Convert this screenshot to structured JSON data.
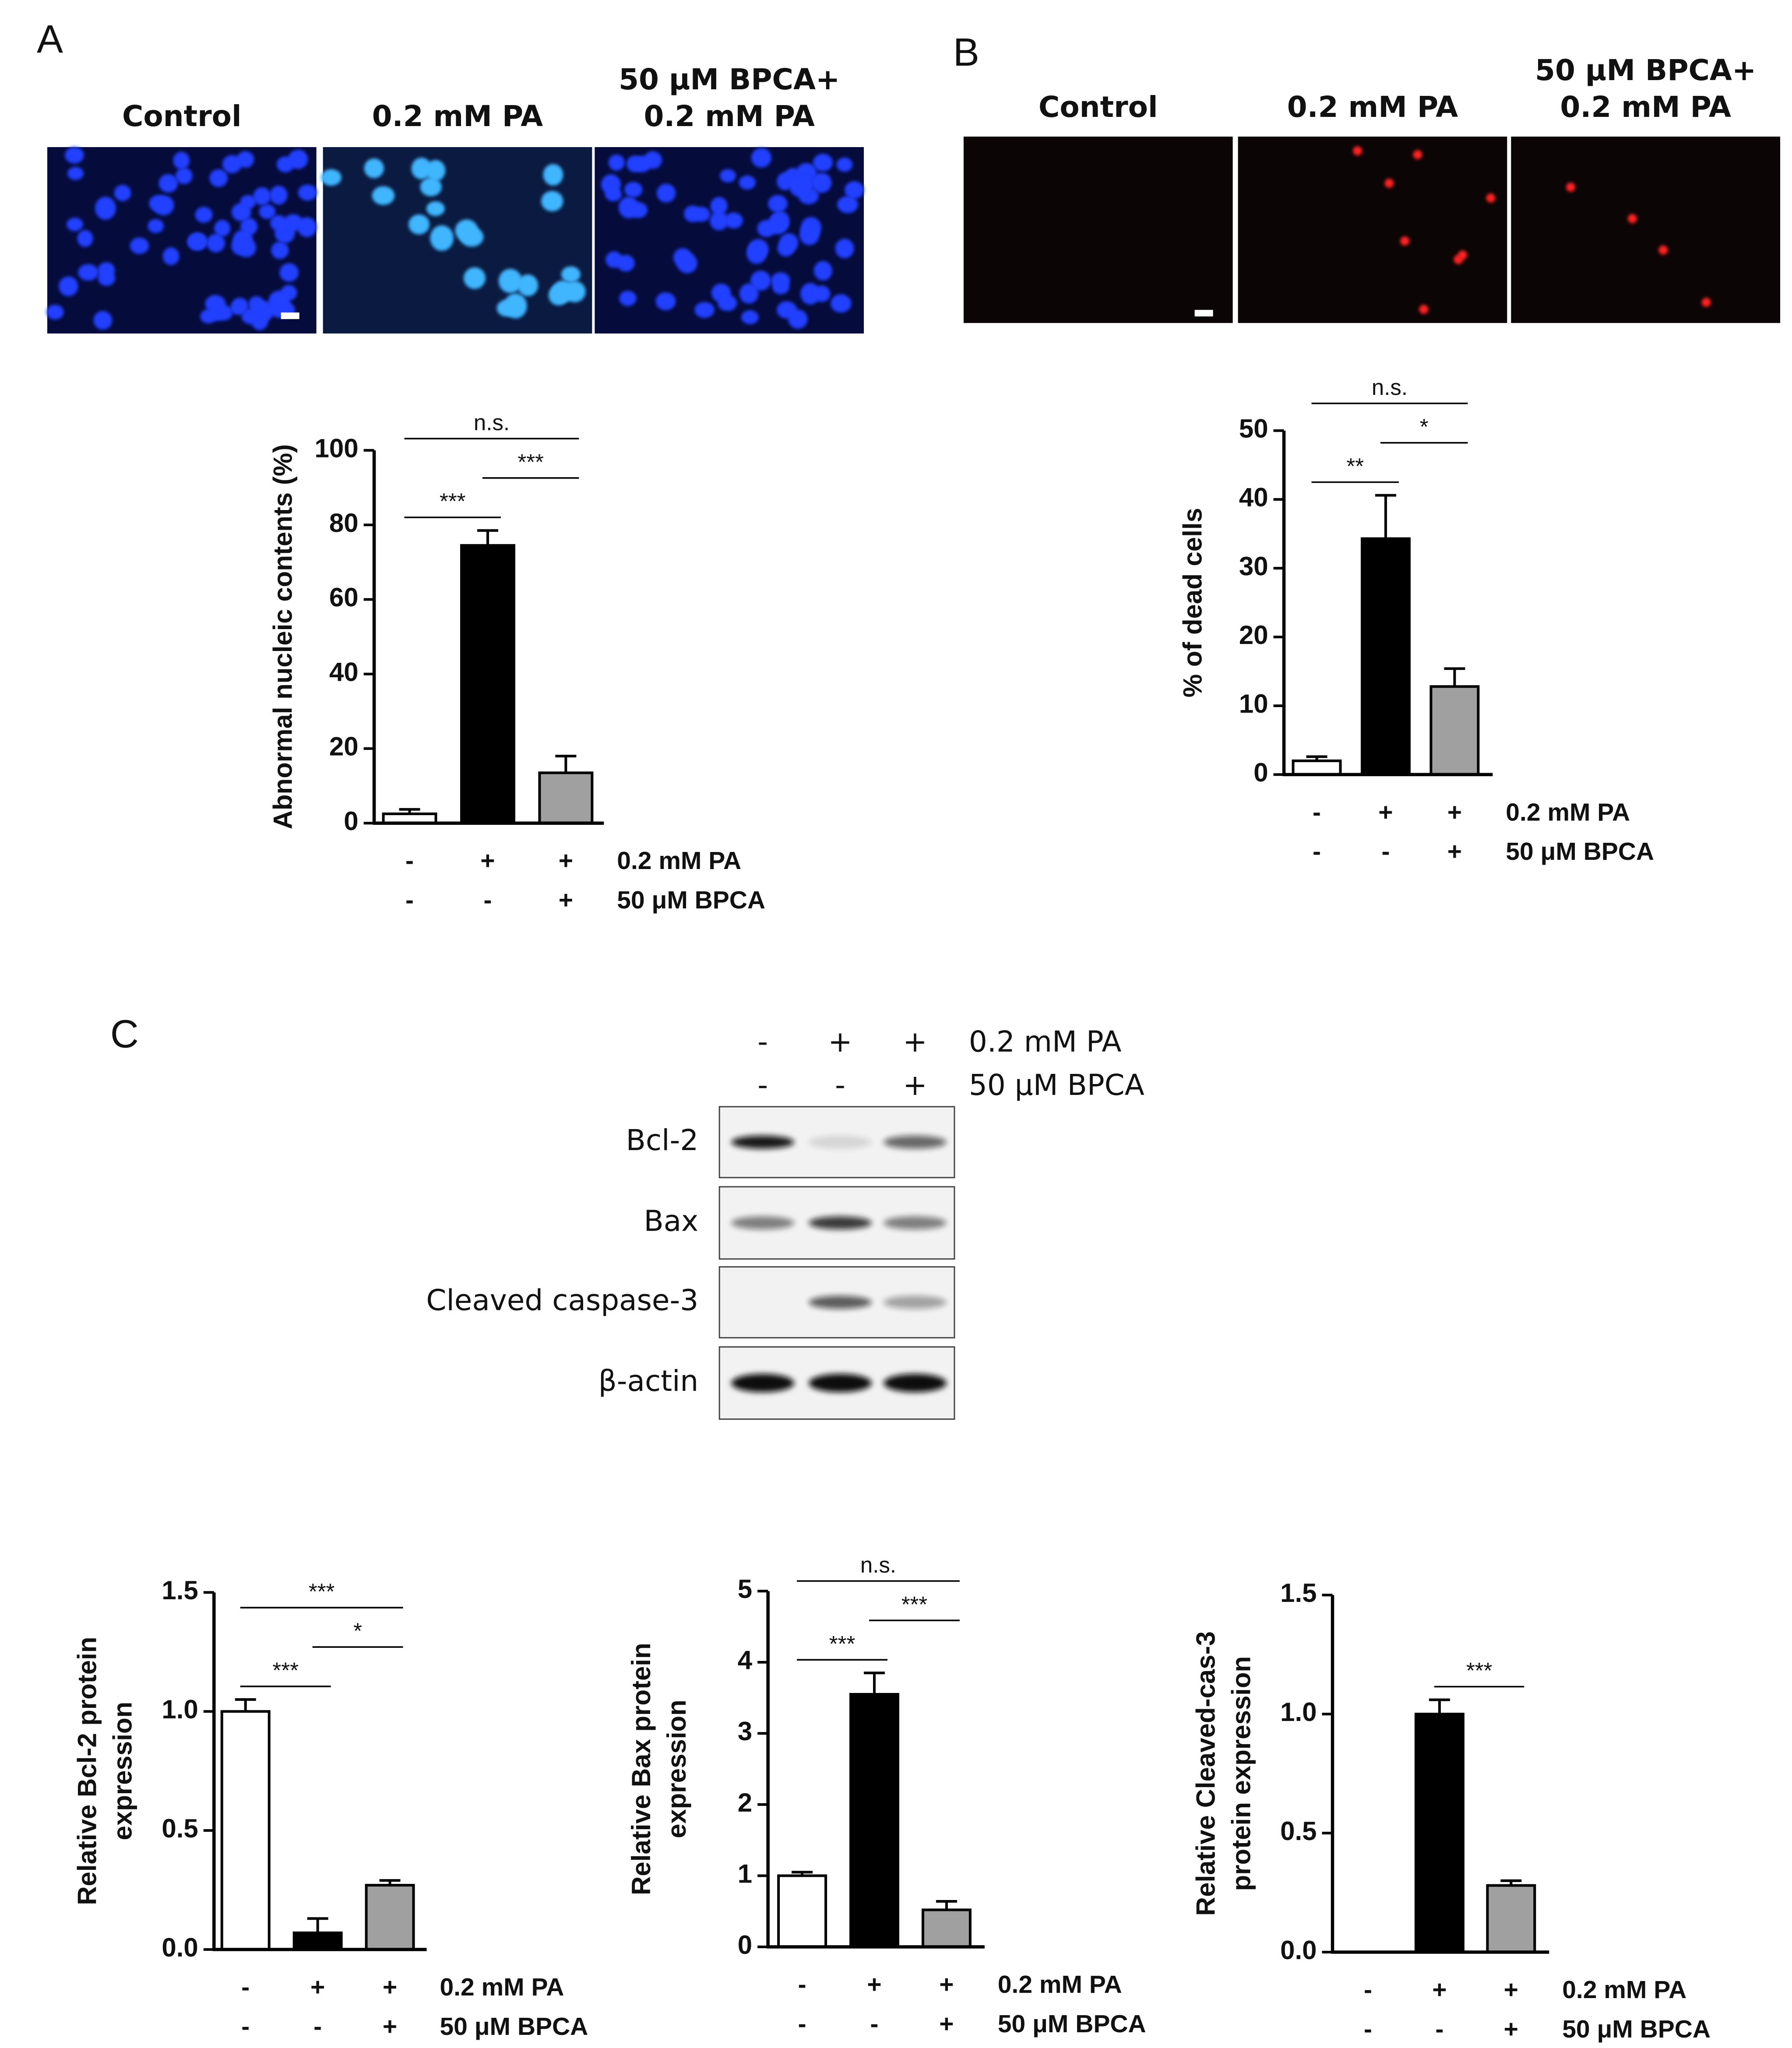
{
  "panel_labels": [
    "A",
    "B",
    "C"
  ],
  "image_panels": [
    {
      "titles": [
        [
          "Control"
        ],
        [
          "0.2 mM PA"
        ],
        [
          "50 μM BPCA+",
          "0.2 mM PA"
        ]
      ]
    },
    {
      "titles": [
        [
          "Control"
        ],
        [
          "0.2 mM PA"
        ],
        [
          "50 μM BPCA+",
          "0.2 mM PA"
        ]
      ]
    }
  ],
  "blot": {
    "conditions": [
      {
        "label": "0.2 mM PA",
        "signs": [
          "-",
          "+",
          "+"
        ]
      },
      {
        "label": "50 μM BPCA",
        "signs": [
          "-",
          "-",
          "+"
        ]
      }
    ],
    "rows": [
      "Bcl-2",
      "Bax",
      "Cleaved caspase-3",
      "β-actin"
    ]
  },
  "chart_data": [
    {
      "type": "bar",
      "y_label": [
        "Abnormal nucleic contents (%)"
      ],
      "ylim": [
        0,
        100
      ],
      "yticks": [
        0,
        20,
        40,
        60,
        80,
        100
      ],
      "values": [
        2.5,
        74.5,
        13.5
      ],
      "errors": [
        1.2,
        4,
        4.5
      ],
      "colors": [
        "#ffffff",
        "#000000",
        "#a0a0a0"
      ],
      "conditions": [
        {
          "label": "0.2 mM PA",
          "signs": [
            "-",
            "+",
            "+"
          ]
        },
        {
          "label": "50 μM BPCA",
          "signs": [
            "-",
            "-",
            "+"
          ]
        }
      ],
      "annotations": [
        {
          "text": "***",
          "between": [
            0,
            1
          ]
        },
        {
          "text": "***",
          "between": [
            1,
            2
          ]
        },
        {
          "text": "n.s.",
          "between": [
            0,
            2
          ]
        }
      ]
    },
    {
      "type": "bar",
      "y_label": [
        "% of dead cells"
      ],
      "ylim": [
        0,
        50
      ],
      "yticks": [
        0,
        10,
        20,
        30,
        40,
        50
      ],
      "values": [
        2,
        34.3,
        12.8
      ],
      "errors": [
        0.6,
        6.3,
        2.6
      ],
      "colors": [
        "#ffffff",
        "#000000",
        "#a0a0a0"
      ],
      "conditions": [
        {
          "label": "0.2 mM PA",
          "signs": [
            "-",
            "+",
            "+"
          ]
        },
        {
          "label": "50 μM BPCA",
          "signs": [
            "-",
            "-",
            "+"
          ]
        }
      ],
      "annotations": [
        {
          "text": "**",
          "between": [
            0,
            1
          ]
        },
        {
          "text": "*",
          "between": [
            1,
            2
          ]
        },
        {
          "text": "n.s.",
          "between": [
            0,
            2
          ]
        }
      ]
    },
    {
      "type": "bar",
      "y_label": [
        "Relative Bcl-2 protein",
        "expression"
      ],
      "ylim": [
        0,
        1.5
      ],
      "yticks": [
        {
          "value": 0,
          "label": "0.0"
        },
        0.5,
        {
          "value": 1,
          "label": "1.0"
        },
        1.5
      ],
      "values": [
        1.0,
        0.07,
        0.27
      ],
      "errors": [
        0.05,
        0.06,
        0.02
      ],
      "colors": [
        "#ffffff",
        "#000000",
        "#a0a0a0"
      ],
      "conditions": [
        {
          "label": "0.2 mM PA",
          "signs": [
            "-",
            "+",
            "+"
          ]
        },
        {
          "label": "50 μM BPCA",
          "signs": [
            "-",
            "-",
            "+"
          ]
        }
      ],
      "annotations": [
        {
          "text": "***",
          "between": [
            0,
            1
          ]
        },
        {
          "text": "*",
          "between": [
            1,
            2
          ]
        },
        {
          "text": "***",
          "between": [
            0,
            2
          ]
        }
      ]
    },
    {
      "type": "bar",
      "y_label": [
        "Relative Bax protein",
        "expression"
      ],
      "ylim": [
        0,
        5
      ],
      "yticks": [
        0,
        1,
        2,
        3,
        4,
        5
      ],
      "values": [
        1.0,
        3.55,
        0.52
      ],
      "errors": [
        0.05,
        0.3,
        0.12
      ],
      "colors": [
        "#ffffff",
        "#000000",
        "#a0a0a0"
      ],
      "conditions": [
        {
          "label": "0.2 mM PA",
          "signs": [
            "-",
            "+",
            "+"
          ]
        },
        {
          "label": "50 μM BPCA",
          "signs": [
            "-",
            "-",
            "+"
          ]
        }
      ],
      "annotations": [
        {
          "text": "***",
          "between": [
            0,
            1
          ]
        },
        {
          "text": "***",
          "between": [
            1,
            2
          ]
        },
        {
          "text": "n.s.",
          "between": [
            0,
            2
          ]
        }
      ]
    },
    {
      "type": "bar",
      "y_label": [
        "Relative Cleaved-cas-3",
        "protein expression"
      ],
      "ylim": [
        0,
        1.5
      ],
      "yticks": [
        {
          "value": 0,
          "label": "0.0"
        },
        0.5,
        {
          "value": 1,
          "label": "1.0"
        },
        1.5
      ],
      "values": [
        0,
        1.0,
        0.28
      ],
      "errors": [
        0,
        0.06,
        0.02
      ],
      "colors": [
        "#ffffff",
        "#000000",
        "#a0a0a0"
      ],
      "conditions": [
        {
          "label": "0.2 mM PA",
          "signs": [
            "-",
            "+",
            "+"
          ]
        },
        {
          "label": "50 μM BPCA",
          "signs": [
            "-",
            "-",
            "+"
          ]
        }
      ],
      "annotations": [
        {
          "text": "***",
          "between": [
            1,
            2
          ]
        }
      ]
    }
  ]
}
